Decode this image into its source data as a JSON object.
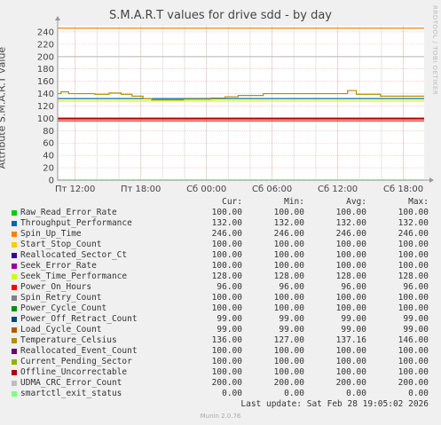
{
  "title": "S.M.A.R.T values for drive sdd - by day",
  "watermark": "RRDTOOL / TOBI OETIKER",
  "legend_headers": [
    "Cur:",
    "Min:",
    "Avg:",
    "Max:"
  ],
  "legend": [
    {
      "name": "Raw_Read_Error_Rate",
      "color": "#00cc00",
      "cur": "100.00",
      "min": "100.00",
      "avg": "100.00",
      "max": "100.00"
    },
    {
      "name": "Throughput_Performance",
      "color": "#0066b3",
      "cur": "132.00",
      "min": "132.00",
      "avg": "132.00",
      "max": "132.00"
    },
    {
      "name": "Spin_Up_Time",
      "color": "#ff8000",
      "cur": "246.00",
      "min": "246.00",
      "avg": "246.00",
      "max": "246.00"
    },
    {
      "name": "Start_Stop_Count",
      "color": "#ffcc00",
      "cur": "100.00",
      "min": "100.00",
      "avg": "100.00",
      "max": "100.00"
    },
    {
      "name": "Reallocated_Sector_Ct",
      "color": "#330099",
      "cur": "100.00",
      "min": "100.00",
      "avg": "100.00",
      "max": "100.00"
    },
    {
      "name": "Seek_Error_Rate",
      "color": "#990099",
      "cur": "100.00",
      "min": "100.00",
      "avg": "100.00",
      "max": "100.00"
    },
    {
      "name": "Seek_Time_Performance",
      "color": "#ccff00",
      "cur": "128.00",
      "min": "128.00",
      "avg": "128.00",
      "max": "128.00"
    },
    {
      "name": "Power_On_Hours",
      "color": "#ff0000",
      "cur": "96.00",
      "min": "96.00",
      "avg": "96.00",
      "max": "96.00"
    },
    {
      "name": "Spin_Retry_Count",
      "color": "#808080",
      "cur": "100.00",
      "min": "100.00",
      "avg": "100.00",
      "max": "100.00"
    },
    {
      "name": "Power_Cycle_Count",
      "color": "#008f00",
      "cur": "100.00",
      "min": "100.00",
      "avg": "100.00",
      "max": "100.00"
    },
    {
      "name": "Power_Off_Retract_Count",
      "color": "#00487d",
      "cur": "99.00",
      "min": "99.00",
      "avg": "99.00",
      "max": "99.00"
    },
    {
      "name": "Load_Cycle_Count",
      "color": "#b35a00",
      "cur": "99.00",
      "min": "99.00",
      "avg": "99.00",
      "max": "99.00"
    },
    {
      "name": "Temperature_Celsius",
      "color": "#b38f00",
      "cur": "136.00",
      "min": "127.00",
      "avg": "137.16",
      "max": "146.00"
    },
    {
      "name": "Reallocated_Event_Count",
      "color": "#6b006b",
      "cur": "100.00",
      "min": "100.00",
      "avg": "100.00",
      "max": "100.00"
    },
    {
      "name": "Current_Pending_Sector",
      "color": "#8fb300",
      "cur": "100.00",
      "min": "100.00",
      "avg": "100.00",
      "max": "100.00"
    },
    {
      "name": "Offline_Uncorrectable",
      "color": "#b30000",
      "cur": "100.00",
      "min": "100.00",
      "avg": "100.00",
      "max": "100.00"
    },
    {
      "name": "UDMA_CRC_Error_Count",
      "color": "#bebebe",
      "cur": "200.00",
      "min": "200.00",
      "avg": "200.00",
      "max": "200.00"
    },
    {
      "name": "smartctl_exit_status",
      "color": "#80ff80",
      "cur": "0.00",
      "min": "0.00",
      "avg": "0.00",
      "max": "0.00"
    }
  ],
  "last_update": "Last update: Sat Feb 28 19:05:02 2026",
  "footer": "Munin 2.0.76",
  "chart_data": {
    "type": "line",
    "ylabel": "Attribute S.M.A.R.T value",
    "ylim": [
      0,
      250
    ],
    "yticks": [
      0,
      20,
      40,
      60,
      80,
      100,
      120,
      140,
      160,
      180,
      200,
      220,
      240
    ],
    "x_tick_labels": [
      "Пт 12:00",
      "Пт 18:00",
      "Сб 00:00",
      "Сб 06:00",
      "Сб 12:00",
      "Сб 18:00"
    ],
    "x_tick_hours": [
      0,
      6,
      12,
      18,
      24,
      30
    ],
    "x_range_hours": [
      -1.6,
      31.9
    ],
    "grid": true,
    "series": [
      {
        "name": "Raw_Read_Error_Rate",
        "color": "#00cc00",
        "value": 100
      },
      {
        "name": "Throughput_Performance",
        "color": "#0066b3",
        "value": 132
      },
      {
        "name": "Spin_Up_Time",
        "color": "#ff8000",
        "value": 246
      },
      {
        "name": "Start_Stop_Count",
        "color": "#ffcc00",
        "value": 100
      },
      {
        "name": "Reallocated_Sector_Ct",
        "color": "#330099",
        "value": 100
      },
      {
        "name": "Seek_Error_Rate",
        "color": "#990099",
        "value": 100
      },
      {
        "name": "Seek_Time_Performance",
        "color": "#ccff00",
        "value": 128
      },
      {
        "name": "Power_On_Hours",
        "color": "#ff0000",
        "value": 96
      },
      {
        "name": "Spin_Retry_Count",
        "color": "#808080",
        "value": 100
      },
      {
        "name": "Power_Cycle_Count",
        "color": "#008f00",
        "value": 100
      },
      {
        "name": "Power_Off_Retract_Count",
        "color": "#00487d",
        "value": 99
      },
      {
        "name": "Load_Cycle_Count",
        "color": "#b35a00",
        "value": 99
      },
      {
        "name": "Temperature_Celsius",
        "color": "#b38f00",
        "points": [
          [
            -1.6,
            140
          ],
          [
            -1.3,
            143
          ],
          [
            -0.8,
            143
          ],
          [
            -0.6,
            140
          ],
          [
            1.8,
            139
          ],
          [
            2.8,
            139
          ],
          [
            3.1,
            141
          ],
          [
            3.9,
            141
          ],
          [
            4.2,
            139
          ],
          [
            4.9,
            139
          ],
          [
            5.2,
            136
          ],
          [
            5.9,
            136
          ],
          [
            6.2,
            132
          ],
          [
            6.7,
            132
          ],
          [
            7.0,
            130
          ],
          [
            9.6,
            130
          ],
          [
            9.9,
            131
          ],
          [
            12.1,
            131
          ],
          [
            12.4,
            133
          ],
          [
            13.4,
            133
          ],
          [
            13.7,
            135
          ],
          [
            14.6,
            135
          ],
          [
            14.9,
            137
          ],
          [
            16.9,
            137
          ],
          [
            17.2,
            140
          ],
          [
            24.6,
            140
          ],
          [
            24.9,
            145
          ],
          [
            25.4,
            145
          ],
          [
            25.7,
            139
          ],
          [
            27.6,
            139
          ],
          [
            27.9,
            136
          ],
          [
            31.9,
            136
          ]
        ]
      },
      {
        "name": "Reallocated_Event_Count",
        "color": "#6b006b",
        "value": 100
      },
      {
        "name": "Current_Pending_Sector",
        "color": "#8fb300",
        "value": 100
      },
      {
        "name": "Offline_Uncorrectable",
        "color": "#b30000",
        "value": 100
      },
      {
        "name": "UDMA_CRC_Error_Count",
        "color": "#bebebe",
        "value": 200
      },
      {
        "name": "smartctl_exit_status",
        "color": "#80ff80",
        "value": 0
      }
    ]
  }
}
